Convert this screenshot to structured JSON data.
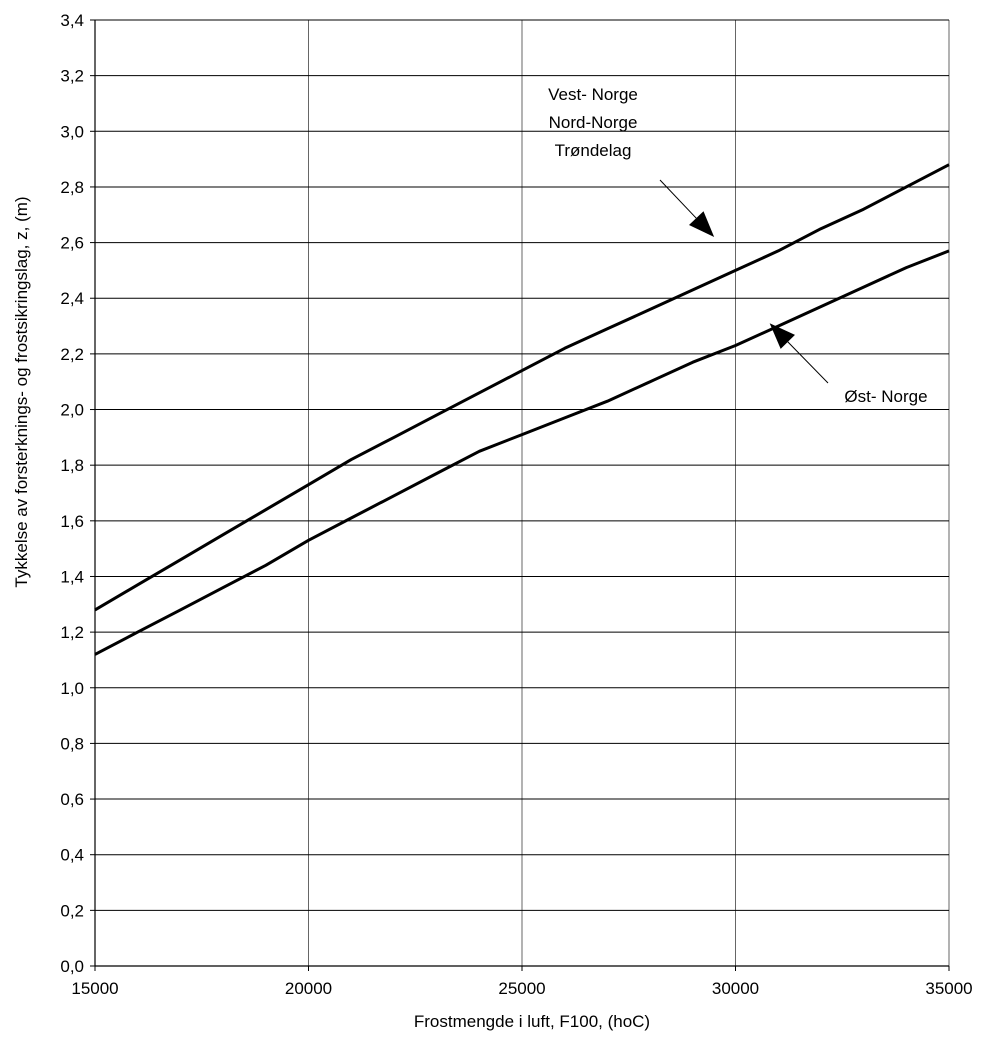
{
  "chart_data": {
    "type": "line",
    "xlabel": "Frostmengde i luft, F100, (hoC)",
    "ylabel": "Tykkelse av forsterknings- og frostsikringslag, z, (m)",
    "xlim": [
      15000,
      35000
    ],
    "ylim": [
      0.0,
      3.4
    ],
    "x_ticks": [
      15000,
      20000,
      25000,
      30000,
      35000
    ],
    "x_tick_labels": [
      "15000",
      "20000",
      "25000",
      "30000",
      "35000"
    ],
    "y_ticks": [
      0.0,
      0.2,
      0.4,
      0.6,
      0.8,
      1.0,
      1.2,
      1.4,
      1.6,
      1.8,
      2.0,
      2.2,
      2.4,
      2.6,
      2.8,
      3.0,
      3.2,
      3.4
    ],
    "y_tick_labels": [
      "0,0",
      "0,2",
      "0,4",
      "0,6",
      "0,8",
      "1,0",
      "1,2",
      "1,4",
      "1,6",
      "1,8",
      "2,0",
      "2,2",
      "2,4",
      "2,6",
      "2,8",
      "3,0",
      "3,2",
      "3,4"
    ],
    "grid": true,
    "legend": "none",
    "line_color": "#000000",
    "series": [
      {
        "x": [
          15000,
          16000,
          17000,
          18000,
          19000,
          20000,
          21000,
          22000,
          23000,
          24000,
          25000,
          26000,
          27000,
          28000,
          29000,
          30000,
          31000,
          32000,
          33000,
          34000,
          35000
        ],
        "y": [
          1.28,
          1.37,
          1.46,
          1.55,
          1.64,
          1.73,
          1.82,
          1.9,
          1.98,
          2.06,
          2.14,
          2.22,
          2.29,
          2.36,
          2.43,
          2.5,
          2.57,
          2.65,
          2.72,
          2.8,
          2.88
        ]
      },
      {
        "x": [
          15000,
          16000,
          17000,
          18000,
          19000,
          20000,
          21000,
          22000,
          23000,
          24000,
          25000,
          26000,
          27000,
          28000,
          29000,
          30000,
          31000,
          32000,
          33000,
          34000,
          35000
        ],
        "y": [
          1.12,
          1.2,
          1.28,
          1.36,
          1.44,
          1.53,
          1.61,
          1.69,
          1.77,
          1.85,
          1.91,
          1.97,
          2.03,
          2.1,
          2.17,
          2.23,
          2.3,
          2.37,
          2.44,
          2.51,
          2.57
        ]
      }
    ],
    "annotations": [
      {
        "lines": [
          "Vest- Norge",
          "Nord-Norge",
          "Trøndelag"
        ],
        "points_to_series": 0,
        "arrow_target": {
          "x": 29500,
          "y": 2.62
        }
      },
      {
        "lines": [
          "Øst- Norge"
        ],
        "points_to_series": 1,
        "arrow_target": {
          "x": 30800,
          "y": 2.31
        }
      }
    ]
  }
}
